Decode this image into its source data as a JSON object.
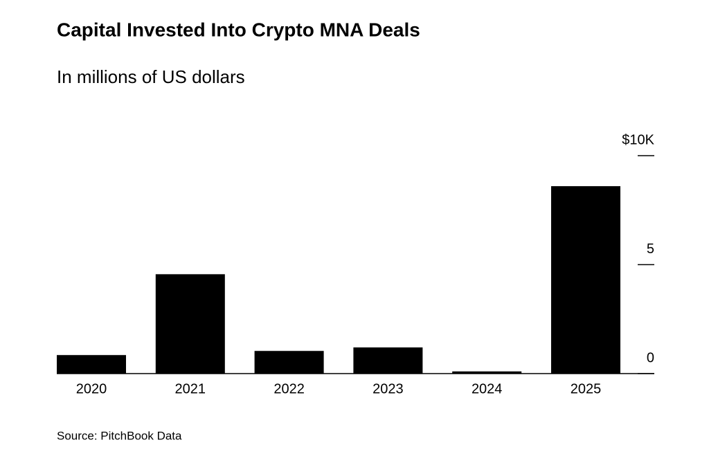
{
  "chart_data": {
    "type": "bar",
    "title": "Capital Invested Into Crypto MNA Deals",
    "subtitle": "In millions of US dollars",
    "source": "Source: PitchBook Data",
    "categories": [
      "2020",
      "2021",
      "2022",
      "2023",
      "2024",
      "2025"
    ],
    "values": [
      850,
      4560,
      1040,
      1200,
      100,
      8600
    ],
    "color": "#000000",
    "ylim": [
      0,
      10000
    ],
    "yticks": [
      0,
      {
        "value": 5000,
        "label": "5"
      },
      {
        "value": 10000,
        "label": "$10K"
      }
    ],
    "y_axis_side": "right",
    "grid": false
  }
}
